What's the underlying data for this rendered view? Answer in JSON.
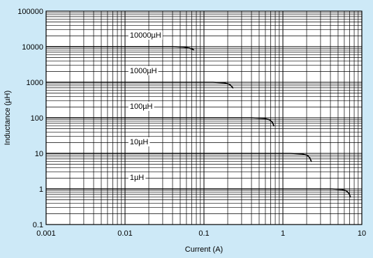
{
  "chart_data": {
    "type": "line",
    "title": "",
    "xlabel": "Current (A)",
    "ylabel": "Inductance (µH)",
    "xscale": "log",
    "yscale": "log",
    "xlim": [
      0.001,
      10
    ],
    "ylim": [
      0.1,
      100000
    ],
    "grid": true,
    "background_color": "#cde9f7",
    "plot_background_color": "#ffffff",
    "line_color": "#000000",
    "x_ticks": [
      {
        "value": 0.001,
        "label": "0.001"
      },
      {
        "value": 0.01,
        "label": "0.01"
      },
      {
        "value": 0.1,
        "label": "0.1"
      },
      {
        "value": 1,
        "label": "1"
      },
      {
        "value": 10,
        "label": "10"
      }
    ],
    "y_ticks": [
      {
        "value": 0.1,
        "label": "0.1"
      },
      {
        "value": 1,
        "label": "1"
      },
      {
        "value": 10,
        "label": "10"
      },
      {
        "value": 100,
        "label": "100"
      },
      {
        "value": 1000,
        "label": "1000"
      },
      {
        "value": 10000,
        "label": "10000"
      },
      {
        "value": 100000,
        "label": "100000"
      }
    ],
    "series": [
      {
        "name": "10000µH",
        "label_x": 0.0115,
        "label_y": 18000,
        "points": [
          [
            0.001,
            10000
          ],
          [
            0.04,
            10000
          ],
          [
            0.055,
            9700
          ],
          [
            0.065,
            9200
          ],
          [
            0.072,
            8500
          ],
          [
            0.075,
            8000
          ]
        ]
      },
      {
        "name": "1000µH",
        "label_x": 0.0115,
        "label_y": 1800,
        "points": [
          [
            0.001,
            1000
          ],
          [
            0.13,
            1000
          ],
          [
            0.18,
            960
          ],
          [
            0.21,
            880
          ],
          [
            0.225,
            760
          ],
          [
            0.235,
            680
          ]
        ]
      },
      {
        "name": "100µH",
        "label_x": 0.0115,
        "label_y": 180,
        "points": [
          [
            0.001,
            100
          ],
          [
            0.4,
            100
          ],
          [
            0.58,
            96
          ],
          [
            0.68,
            88
          ],
          [
            0.74,
            74
          ],
          [
            0.77,
            58
          ]
        ]
      },
      {
        "name": "10µH",
        "label_x": 0.0115,
        "label_y": 18,
        "points": [
          [
            0.001,
            10
          ],
          [
            1.25,
            10
          ],
          [
            1.75,
            9.6
          ],
          [
            2.05,
            8.8
          ],
          [
            2.2,
            7.4
          ],
          [
            2.3,
            5.8
          ]
        ]
      },
      {
        "name": "1µH",
        "label_x": 0.0115,
        "label_y": 1.8,
        "points": [
          [
            0.001,
            1
          ],
          [
            4.2,
            1
          ],
          [
            5.6,
            0.96
          ],
          [
            6.4,
            0.88
          ],
          [
            6.9,
            0.74
          ],
          [
            7.2,
            0.58
          ]
        ]
      }
    ]
  }
}
